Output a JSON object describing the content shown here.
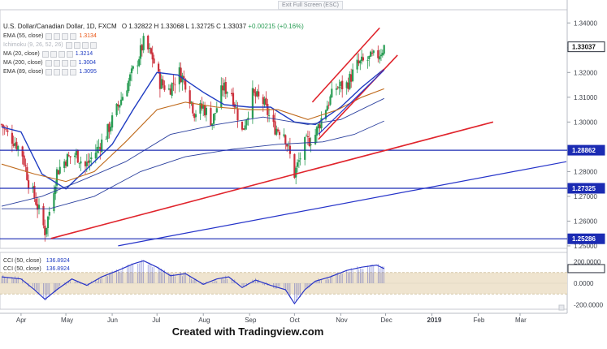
{
  "app": {
    "fullscreen_hint": "Exit Full Screen (ESC)",
    "credit": "Created with Tradingview.com"
  },
  "header": {
    "symbol_title": "U.S. Dollar/Canadian Dollar, 1D, FXCM",
    "open": "O 1.32822",
    "high": "H 1.33068",
    "low": "L 1.32725",
    "close": "C 1.33037",
    "change": "+0.00215 (+0.16%)"
  },
  "legend": [
    {
      "label": "EMA (55, close)",
      "value": "1.3134",
      "color": "#e8510f"
    },
    {
      "label": "Ichimoku (9, 26, 52, 26)",
      "value": "",
      "color": "#b0b4bc"
    },
    {
      "label": "MA (20, close)",
      "value": "1.3214",
      "color": "#1f3cc2"
    },
    {
      "label": "MA (200, close)",
      "value": "1.3004",
      "color": "#1f3cc2"
    },
    {
      "label": "EMA (89, close)",
      "value": "1.3095",
      "color": "#1f3cc2"
    }
  ],
  "indicator_legend": [
    {
      "label": "CCI (50, close)",
      "value": "136.8924"
    },
    {
      "label": "CCI (50, close)",
      "value": "136.8924"
    }
  ],
  "colors": {
    "up": "#2a9d55",
    "down": "#cc2f3b",
    "ema55": "#bf6a1c",
    "ma20": "#1f3cc2",
    "slow_ma": "#2a3f9e",
    "hline": "#1b2bb3",
    "trend_red": "#e0242c",
    "trend_blue": "#2533c9",
    "cci_band": "#efe4cf",
    "cci_line": "#2733c8"
  },
  "chart_data": {
    "type": "candlestick",
    "symbol": "U.S. Dollar/Canadian Dollar",
    "timeframe": "1D",
    "ylim": [
      1.249,
      1.345
    ],
    "y_ticks": [
      "1.34000",
      "1.33000",
      "1.32000",
      "1.31000",
      "1.30000",
      "1.28000",
      "1.27000",
      "1.26000",
      "1.25000"
    ],
    "x_ticks": [
      "Apr",
      "May",
      "Jun",
      "Jul",
      "Aug",
      "Sep",
      "Oct",
      "Nov",
      "Dec",
      "2019",
      "Feb",
      "Mar"
    ],
    "price_labels": [
      {
        "text": "1.33037",
        "value": 1.33037,
        "style": "dark"
      },
      {
        "text": "1.28862",
        "value": 1.28862,
        "style": "blue"
      },
      {
        "text": "1.27325",
        "value": 1.27325,
        "style": "blue"
      },
      {
        "text": "1.25286",
        "value": 1.25286,
        "style": "blue"
      }
    ],
    "horizontal_levels": [
      1.28862,
      1.27325,
      1.25286
    ],
    "close_path": [
      [
        "2018-03-19",
        1.299
      ],
      [
        "2018-03-23",
        1.295
      ],
      [
        "2018-03-28",
        1.292
      ],
      [
        "2018-04-02",
        1.287
      ],
      [
        "2018-04-06",
        1.276
      ],
      [
        "2018-04-11",
        1.268
      ],
      [
        "2018-04-17",
        1.256
      ],
      [
        "2018-04-20",
        1.264
      ],
      [
        "2018-04-25",
        1.28
      ],
      [
        "2018-05-01",
        1.285
      ],
      [
        "2018-05-08",
        1.287
      ],
      [
        "2018-05-14",
        1.282
      ],
      [
        "2018-05-21",
        1.288
      ],
      [
        "2018-05-28",
        1.295
      ],
      [
        "2018-06-04",
        1.305
      ],
      [
        "2018-06-11",
        1.315
      ],
      [
        "2018-06-18",
        1.325
      ],
      [
        "2018-06-22",
        1.332
      ],
      [
        "2018-06-28",
        1.326
      ],
      [
        "2018-07-03",
        1.316
      ],
      [
        "2018-07-09",
        1.313
      ],
      [
        "2018-07-16",
        1.32
      ],
      [
        "2018-07-20",
        1.316
      ],
      [
        "2018-07-26",
        1.304
      ],
      [
        "2018-08-01",
        1.306
      ],
      [
        "2018-08-07",
        1.3
      ],
      [
        "2018-08-14",
        1.314
      ],
      [
        "2018-08-20",
        1.312
      ],
      [
        "2018-08-27",
        1.296
      ],
      [
        "2018-09-03",
        1.311
      ],
      [
        "2018-09-10",
        1.308
      ],
      [
        "2018-09-17",
        1.298
      ],
      [
        "2018-09-24",
        1.296
      ],
      [
        "2018-10-01",
        1.279
      ],
      [
        "2018-10-08",
        1.291
      ],
      [
        "2018-10-15",
        1.295
      ],
      [
        "2018-10-22",
        1.306
      ],
      [
        "2018-10-29",
        1.314
      ],
      [
        "2018-11-05",
        1.315
      ],
      [
        "2018-11-12",
        1.323
      ],
      [
        "2018-11-19",
        1.325
      ],
      [
        "2018-11-26",
        1.327
      ],
      [
        "2018-11-30",
        1.3304
      ]
    ],
    "indicators": [
      {
        "name": "MA (20, close)",
        "last": 1.3214,
        "path": [
          [
            "2018-03-19",
            1.298
          ],
          [
            "2018-04-01",
            1.296
          ],
          [
            "2018-04-15",
            1.279
          ],
          [
            "2018-05-01",
            1.273
          ],
          [
            "2018-05-15",
            1.281
          ],
          [
            "2018-06-01",
            1.291
          ],
          [
            "2018-06-15",
            1.305
          ],
          [
            "2018-07-01",
            1.32
          ],
          [
            "2018-07-15",
            1.319
          ],
          [
            "2018-08-01",
            1.312
          ],
          [
            "2018-08-15",
            1.307
          ],
          [
            "2018-09-01",
            1.306
          ],
          [
            "2018-09-15",
            1.306
          ],
          [
            "2018-10-01",
            1.3
          ],
          [
            "2018-10-15",
            1.299
          ],
          [
            "2018-11-01",
            1.306
          ],
          [
            "2018-11-15",
            1.314
          ],
          [
            "2018-11-30",
            1.3214
          ]
        ]
      },
      {
        "name": "EMA (55, close)",
        "last": 1.3134,
        "path": [
          [
            "2018-03-19",
            1.283
          ],
          [
            "2018-04-10",
            1.279
          ],
          [
            "2018-05-01",
            1.276
          ],
          [
            "2018-05-20",
            1.28
          ],
          [
            "2018-06-10",
            1.292
          ],
          [
            "2018-07-01",
            1.305
          ],
          [
            "2018-07-20",
            1.308
          ],
          [
            "2018-08-10",
            1.306
          ],
          [
            "2018-09-01",
            1.305
          ],
          [
            "2018-09-20",
            1.305
          ],
          [
            "2018-10-10",
            1.301
          ],
          [
            "2018-10-30",
            1.305
          ],
          [
            "2018-11-15",
            1.31
          ],
          [
            "2018-11-30",
            1.3134
          ]
        ]
      },
      {
        "name": "EMA (89, close)",
        "last": 1.3095,
        "path": [
          [
            "2018-03-19",
            1.266
          ],
          [
            "2018-04-15",
            1.27
          ],
          [
            "2018-05-10",
            1.276
          ],
          [
            "2018-06-10",
            1.284
          ],
          [
            "2018-07-10",
            1.295
          ],
          [
            "2018-08-10",
            1.299
          ],
          [
            "2018-09-10",
            1.302
          ],
          [
            "2018-10-10",
            1.299
          ],
          [
            "2018-11-01",
            1.301
          ],
          [
            "2018-11-30",
            1.3095
          ]
        ]
      },
      {
        "name": "MA (200, close)",
        "last": 1.3004,
        "path": [
          [
            "2018-03-19",
            1.265
          ],
          [
            "2018-04-20",
            1.265
          ],
          [
            "2018-05-20",
            1.27
          ],
          [
            "2018-06-20",
            1.28
          ],
          [
            "2018-07-20",
            1.286
          ],
          [
            "2018-08-20",
            1.289
          ],
          [
            "2018-09-20",
            1.291
          ],
          [
            "2018-10-20",
            1.292
          ],
          [
            "2018-11-10",
            1.295
          ],
          [
            "2018-11-30",
            1.3004
          ]
        ]
      }
    ],
    "trendlines": [
      {
        "color": "red",
        "from": [
          "2018-04-21",
          1.253
        ],
        "to": [
          "2019-02-11",
          1.3
        ]
      },
      {
        "color": "red",
        "from": [
          "2018-10-17",
          1.293
        ],
        "to": [
          "2018-12-09",
          1.327
        ]
      },
      {
        "color": "red",
        "from": [
          "2018-10-13",
          1.308
        ],
        "to": [
          "2018-11-27",
          1.338
        ]
      },
      {
        "color": "blue",
        "from": [
          "2018-10-17",
          1.295
        ],
        "to": [
          "2018-11-30",
          1.321
        ]
      },
      {
        "color": "blue",
        "from": [
          "2018-06-05",
          1.25
        ],
        "to": [
          "2019-04-01",
          1.284
        ]
      }
    ],
    "cci": {
      "name": "CCI (50, close)",
      "last": 136.8924,
      "ylim": [
        -220,
        250
      ],
      "y_ticks": [
        "200.0000",
        "0.0000",
        "-200.0000"
      ],
      "band": [
        -100,
        100
      ],
      "path": [
        [
          "2018-03-19",
          60
        ],
        [
          "2018-04-01",
          40
        ],
        [
          "2018-04-10",
          -60
        ],
        [
          "2018-04-17",
          -150
        ],
        [
          "2018-04-25",
          -60
        ],
        [
          "2018-05-05",
          40
        ],
        [
          "2018-05-15",
          -20
        ],
        [
          "2018-05-25",
          60
        ],
        [
          "2018-06-05",
          120
        ],
        [
          "2018-06-15",
          180
        ],
        [
          "2018-06-22",
          210
        ],
        [
          "2018-07-01",
          150
        ],
        [
          "2018-07-10",
          70
        ],
        [
          "2018-07-20",
          90
        ],
        [
          "2018-08-01",
          -10
        ],
        [
          "2018-08-10",
          40
        ],
        [
          "2018-08-18",
          60
        ],
        [
          "2018-08-27",
          -40
        ],
        [
          "2018-09-05",
          30
        ],
        [
          "2018-09-15",
          -20
        ],
        [
          "2018-09-25",
          -60
        ],
        [
          "2018-10-01",
          -190
        ],
        [
          "2018-10-08",
          -60
        ],
        [
          "2018-10-15",
          20
        ],
        [
          "2018-10-25",
          60
        ],
        [
          "2018-11-05",
          120
        ],
        [
          "2018-11-15",
          150
        ],
        [
          "2018-11-25",
          170
        ],
        [
          "2018-11-30",
          137
        ]
      ]
    }
  }
}
